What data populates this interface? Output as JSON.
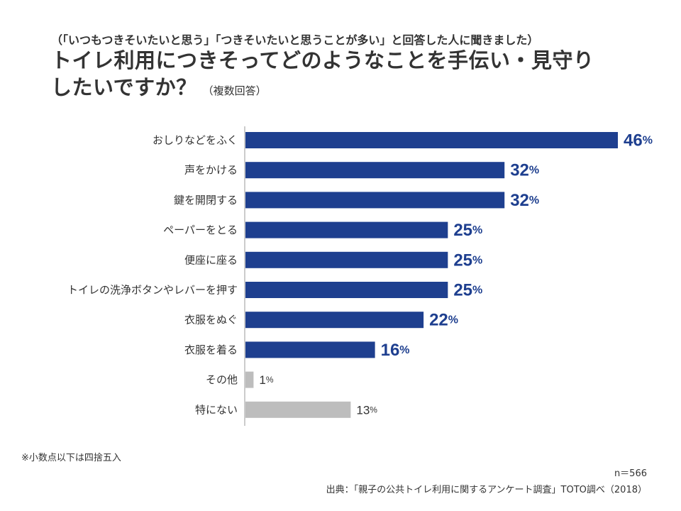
{
  "header": {
    "subtitle": "（「いつもつきそいたいと思う」「つきそいたいと思うことが多い」と回答した人に聞きました）",
    "title_line1": "トイレ利用につきそってどのようなことを手伝い・見守り",
    "title_line2": "したいですか？",
    "title_note": "（複数回答）"
  },
  "chart_data": {
    "type": "bar",
    "orientation": "horizontal",
    "categories": [
      "おしりなどをふく",
      "声をかける",
      "鍵を開閉する",
      "ペーパーをとる",
      "便座に座る",
      "トイレの洗浄ボタンやレバーを押す",
      "衣服をぬぐ",
      "衣服を着る",
      "その他",
      "特にない"
    ],
    "values": [
      46,
      32,
      32,
      25,
      25,
      25,
      22,
      16,
      1,
      13
    ],
    "value_suffix": "%",
    "highlight": [
      true,
      true,
      true,
      true,
      true,
      true,
      true,
      true,
      false,
      false
    ],
    "colors": {
      "primary": "#1e3f8f",
      "secondary": "#bdbdbd",
      "axis": "#999999"
    },
    "xlim": [
      0,
      46
    ],
    "grid": false,
    "legend": "none"
  },
  "footer": {
    "footnote": "※小数点以下は四捨五入",
    "n": "n＝566",
    "source": "出典：「親子の公共トイレ利用に関するアンケート調査」TOTO調べ（2018）"
  }
}
